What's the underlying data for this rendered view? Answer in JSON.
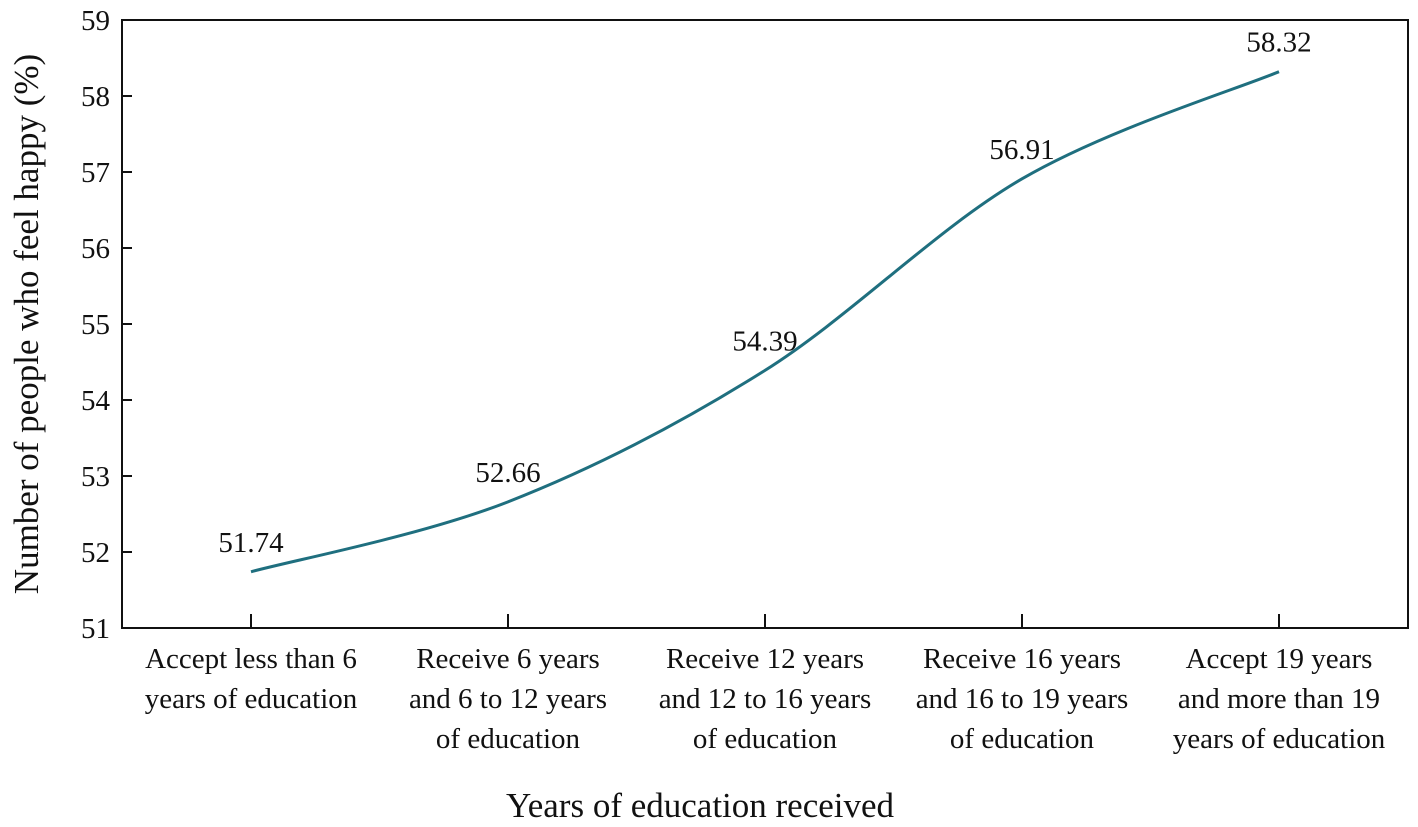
{
  "chart_data": {
    "type": "line",
    "title": "",
    "xlabel": "Years of education received",
    "ylabel": "Number of people who feel happy (%)",
    "ylim": [
      51,
      59
    ],
    "yticks": [
      51,
      52,
      53,
      54,
      55,
      56,
      57,
      58,
      59
    ],
    "grid": false,
    "legend": "none",
    "line_color": "#1f6f7f",
    "categories": [
      [
        "Accept less than 6",
        "years of education"
      ],
      [
        "Receive 6 years",
        "and 6 to 12 years",
        "of education"
      ],
      [
        "Receive 12 years",
        "and 12 to 16 years",
        "of education"
      ],
      [
        "Receive 16 years",
        "and 16 to 19 years",
        "of education"
      ],
      [
        "Accept 19 years",
        "and more than 19",
        "years of education"
      ]
    ],
    "series": [
      {
        "values": [
          51.74,
          52.66,
          54.39,
          56.91,
          58.32
        ],
        "data_labels": [
          "51.74",
          "52.66",
          "54.39",
          "56.91",
          "58.32"
        ]
      }
    ]
  }
}
